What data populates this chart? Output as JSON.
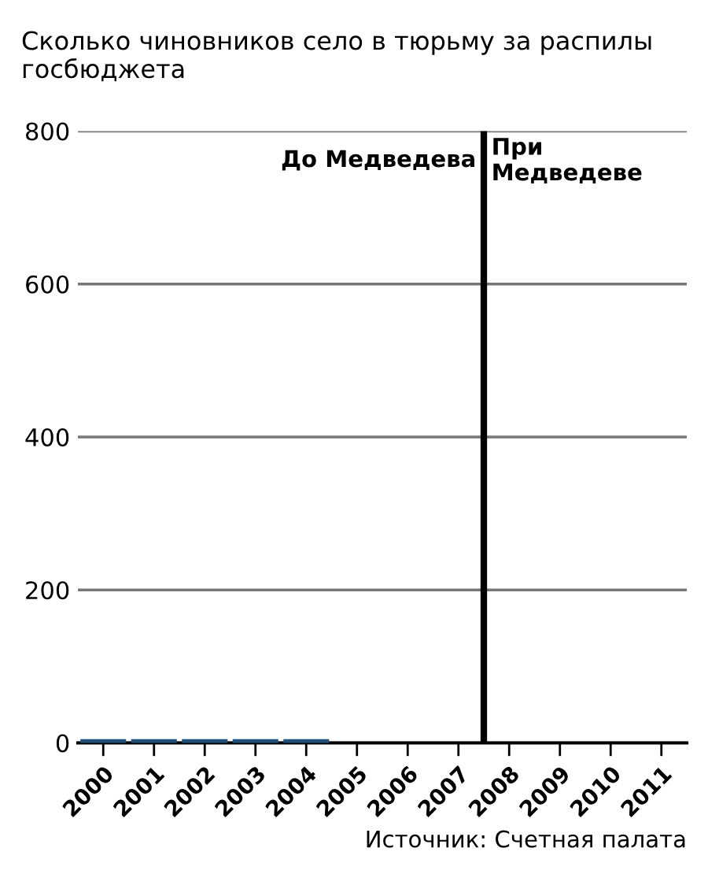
{
  "chart_data": {
    "type": "bar",
    "title": "Сколько чиновников село в тюрьму за распилы госбюджета",
    "categories": [
      "2000",
      "2001",
      "2002",
      "2003",
      "2004",
      "2005",
      "2006",
      "2007",
      "2008",
      "2009",
      "2010",
      "2011"
    ],
    "values": [
      5,
      5,
      5,
      5,
      5,
      0,
      0,
      0,
      0,
      0,
      0,
      0
    ],
    "color": "#1f4e79",
    "ylim": [
      0,
      800
    ],
    "yticks": [
      0,
      200,
      400,
      600,
      800
    ],
    "grid": "y",
    "ref_lines": [
      {
        "axis": "x",
        "value": "2008",
        "color": "#000000"
      }
    ],
    "annotations": [
      "До Медведева",
      "При Медведеве",
      "Источник: Счетная палата"
    ]
  }
}
